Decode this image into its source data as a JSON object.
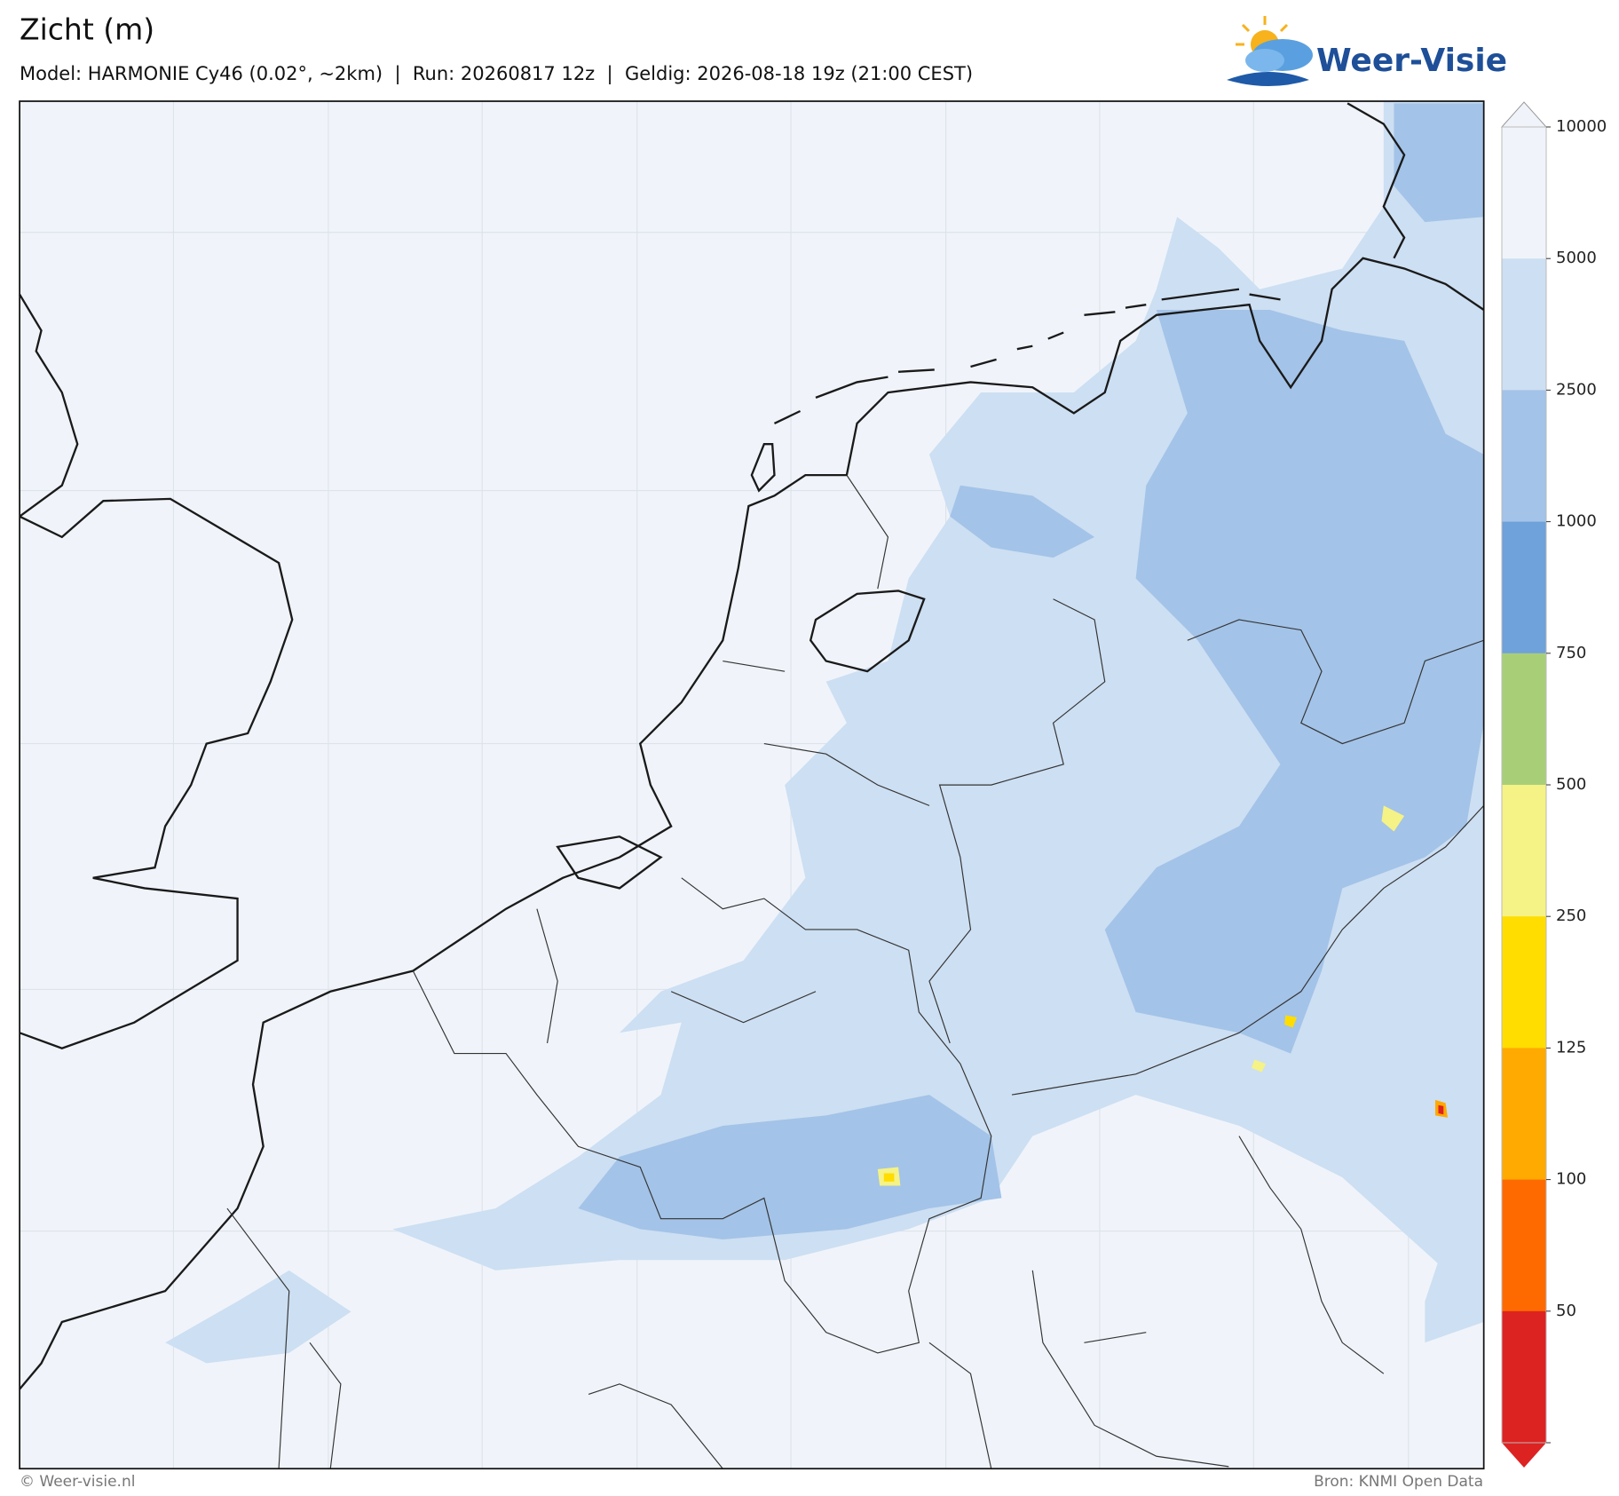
{
  "header": {
    "title": "Zicht (m)",
    "subtitle": "Model: HARMONIE Cy46 (0.02°, ~2km)  |  Run: 20260817 12z  |  Geldig: 2026-08-18 19z (21:00 CEST)",
    "logo": "Weer-Visie"
  },
  "colorbar": {
    "ticks": [
      10000,
      5000,
      2500,
      1000,
      750,
      500,
      250,
      125,
      100,
      50
    ],
    "colors": [
      "#f0f4fa",
      "#cddff2",
      "#a3c3e8",
      "#6fa1da",
      "#a8cf78",
      "#f5f286",
      "#ffdd00",
      "#ffaa00",
      "#ff6a00",
      "#dd2222"
    ],
    "over_color": "#f0f4fa"
  },
  "footer": {
    "left": "© Weer-visie.nl",
    "right": "Bron: KNMI Open Data"
  }
}
